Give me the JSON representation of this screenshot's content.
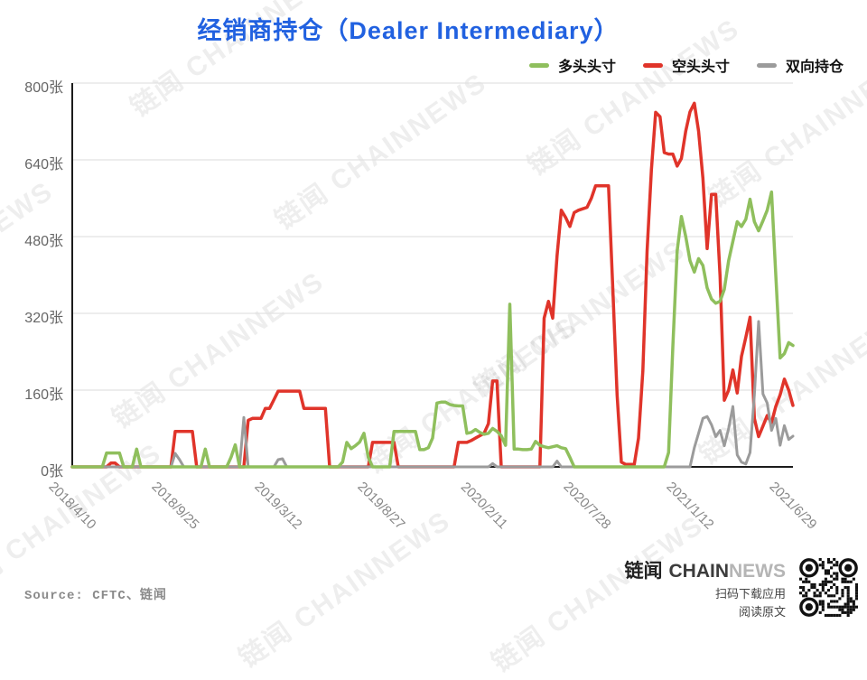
{
  "chart_data": {
    "type": "line",
    "title": "经销商持仓（Dealer Intermediary）",
    "unit": "张",
    "legend_position": "top-right",
    "grid": true,
    "y_axis": {
      "range": [
        0,
        800
      ],
      "ticks": [
        {
          "value": 0,
          "label": "0张"
        },
        {
          "value": 160,
          "label": "160张"
        },
        {
          "value": 320,
          "label": "320张"
        },
        {
          "value": 480,
          "label": "480张"
        },
        {
          "value": 640,
          "label": "640张"
        },
        {
          "value": 800,
          "label": "800张"
        }
      ]
    },
    "x_axis": {
      "tick_labels": [
        "2018/4/10",
        "2018/9/25",
        "2019/3/12",
        "2019/8/27",
        "2020/2/11",
        "2020/7/28",
        "2021/1/12",
        "2021/6/29"
      ],
      "tick_indices": [
        0,
        24,
        48,
        72,
        96,
        120,
        144,
        168
      ],
      "points_total": 169
    },
    "series": [
      {
        "name": "多头头寸",
        "color": "#8fbf5d",
        "values": [
          0,
          0,
          0,
          0,
          0,
          0,
          0,
          0,
          29,
          29,
          29,
          29,
          0,
          0,
          0,
          37,
          0,
          0,
          0,
          0,
          0,
          0,
          0,
          0,
          0,
          0,
          0,
          0,
          0,
          0,
          0,
          37,
          0,
          0,
          0,
          0,
          0,
          20,
          46,
          0,
          0,
          0,
          0,
          0,
          0,
          0,
          0,
          0,
          0,
          0,
          0,
          0,
          0,
          0,
          0,
          0,
          0,
          0,
          0,
          0,
          0,
          0,
          0,
          10,
          51,
          38,
          44,
          52,
          70,
          20,
          0,
          0,
          0,
          0,
          0,
          74,
          74,
          74,
          74,
          74,
          74,
          36,
          36,
          40,
          60,
          133,
          135,
          135,
          130,
          128,
          127,
          127,
          70,
          72,
          78,
          72,
          68,
          70,
          80,
          74,
          65,
          45,
          339,
          37,
          37,
          36,
          36,
          37,
          53,
          45,
          42,
          40,
          42,
          44,
          40,
          38,
          20,
          0,
          0,
          0,
          0,
          0,
          0,
          0,
          0,
          0,
          0,
          0,
          0,
          0,
          0,
          0,
          0,
          0,
          0,
          0,
          0,
          0,
          0,
          30,
          250,
          450,
          522,
          480,
          430,
          406,
          434,
          420,
          373,
          350,
          341,
          345,
          370,
          430,
          470,
          511,
          501,
          516,
          558,
          511,
          492,
          513,
          535,
          573,
          400,
          227,
          236,
          259,
          253
        ]
      },
      {
        "name": "空头头寸",
        "color": "#e0342a",
        "values": [
          0,
          0,
          0,
          0,
          0,
          0,
          0,
          0,
          0,
          8,
          8,
          0,
          0,
          0,
          0,
          0,
          0,
          0,
          0,
          0,
          0,
          0,
          0,
          0,
          74,
          74,
          74,
          74,
          74,
          0,
          0,
          0,
          0,
          0,
          0,
          0,
          0,
          0,
          0,
          0,
          0,
          97,
          101,
          101,
          101,
          122,
          122,
          140,
          158,
          158,
          158,
          158,
          158,
          158,
          122,
          122,
          122,
          122,
          122,
          122,
          0,
          0,
          0,
          0,
          0,
          0,
          0,
          0,
          0,
          0,
          51,
          51,
          51,
          51,
          51,
          51,
          0,
          0,
          0,
          0,
          0,
          0,
          0,
          0,
          0,
          0,
          0,
          0,
          0,
          0,
          51,
          51,
          51,
          55,
          60,
          65,
          70,
          90,
          179,
          179,
          0,
          0,
          0,
          0,
          0,
          0,
          0,
          0,
          0,
          0,
          310,
          345,
          310,
          440,
          535,
          520,
          501,
          530,
          535,
          538,
          541,
          560,
          586,
          586,
          586,
          586,
          373,
          150,
          10,
          5,
          5,
          5,
          60,
          200,
          450,
          620,
          739,
          730,
          655,
          652,
          652,
          627,
          643,
          700,
          740,
          758,
          700,
          602,
          455,
          568,
          568,
          398,
          139,
          160,
          202,
          154,
          230,
          270,
          312,
          101,
          63,
          85,
          107,
          92,
          126,
          150,
          183,
          160,
          128
        ]
      },
      {
        "name": "双向持仓",
        "color": "#9b9b9b",
        "values": [
          0,
          0,
          0,
          0,
          0,
          0,
          0,
          0,
          0,
          0,
          0,
          0,
          0,
          0,
          0,
          0,
          0,
          0,
          0,
          0,
          0,
          0,
          0,
          0,
          28,
          15,
          0,
          0,
          0,
          0,
          0,
          0,
          0,
          0,
          0,
          0,
          0,
          0,
          0,
          0,
          103,
          0,
          0,
          0,
          0,
          0,
          0,
          0,
          15,
          17,
          0,
          0,
          0,
          0,
          0,
          0,
          0,
          0,
          0,
          0,
          0,
          0,
          0,
          0,
          0,
          0,
          0,
          0,
          0,
          0,
          0,
          0,
          0,
          0,
          0,
          0,
          0,
          0,
          0,
          0,
          0,
          0,
          0,
          0,
          0,
          0,
          0,
          0,
          0,
          0,
          0,
          0,
          0,
          0,
          0,
          0,
          0,
          0,
          7,
          0,
          0,
          0,
          0,
          0,
          0,
          0,
          0,
          0,
          0,
          0,
          0,
          0,
          0,
          12,
          0,
          0,
          0,
          0,
          0,
          0,
          0,
          0,
          0,
          0,
          0,
          0,
          0,
          0,
          0,
          0,
          0,
          0,
          0,
          0,
          0,
          0,
          0,
          0,
          0,
          0,
          0,
          0,
          0,
          0,
          0,
          40,
          70,
          101,
          105,
          88,
          63,
          76,
          44,
          80,
          126,
          25,
          10,
          6,
          30,
          150,
          303,
          152,
          133,
          76,
          101,
          45,
          86,
          57,
          64
        ]
      }
    ]
  },
  "source": {
    "label": "Source: CFTC、链闻"
  },
  "footer": {
    "brand_cn": "链闻",
    "brand_en_dark": "CHAIN",
    "brand_en_light": "NEWS",
    "scan_line": "扫码下载应用",
    "read_line": "阅读原文"
  },
  "watermark": {
    "text": "链闻 CHAINNEWS"
  }
}
